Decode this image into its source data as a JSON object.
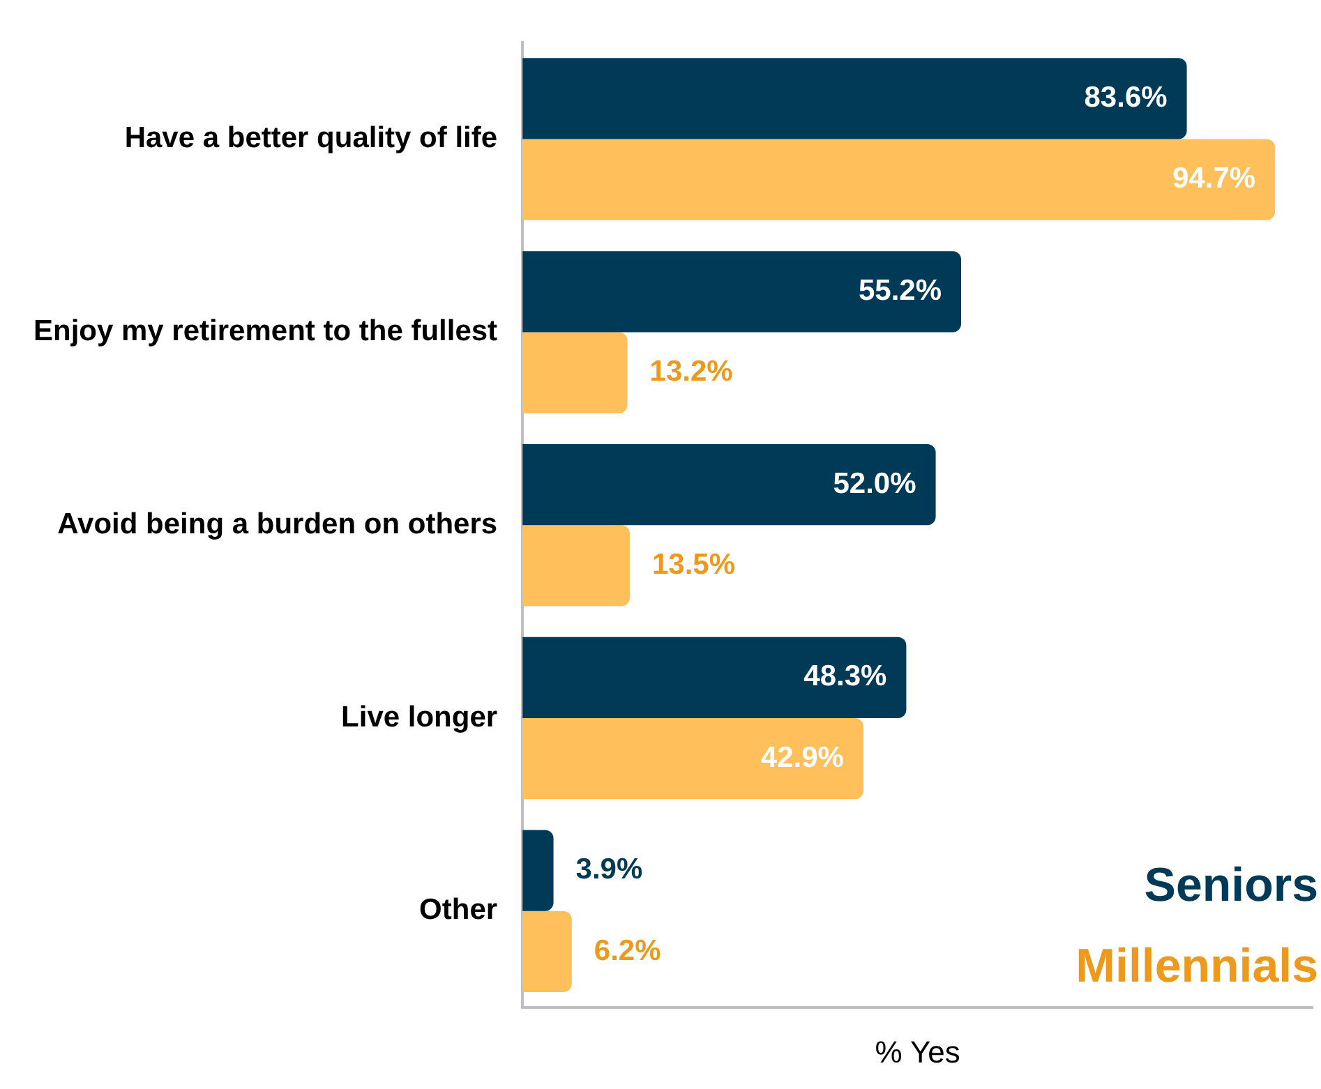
{
  "chart_data": {
    "type": "bar",
    "orientation": "horizontal",
    "xlabel": "% Yes",
    "categories": [
      "Have a better quality of life",
      "Enjoy my retirement to the fullest",
      "Avoid being a burden on others",
      "Live longer",
      "Other"
    ],
    "series": [
      {
        "name": "Seniors",
        "color": "#003a57",
        "values": [
          83.6,
          55.2,
          52.0,
          48.3,
          3.9
        ],
        "value_labels": [
          "83.6%",
          "55.2%",
          "52.0%",
          "48.3%",
          "3.9%"
        ]
      },
      {
        "name": "Millennials",
        "color": "#ffbf5a",
        "values": [
          94.7,
          13.2,
          13.5,
          42.9,
          6.2
        ],
        "value_labels": [
          "94.7%",
          "13.2%",
          "13.5%",
          "42.9%",
          "6.2%"
        ]
      }
    ],
    "tick_labels": "y",
    "grid": false,
    "legend": "bottom right"
  }
}
